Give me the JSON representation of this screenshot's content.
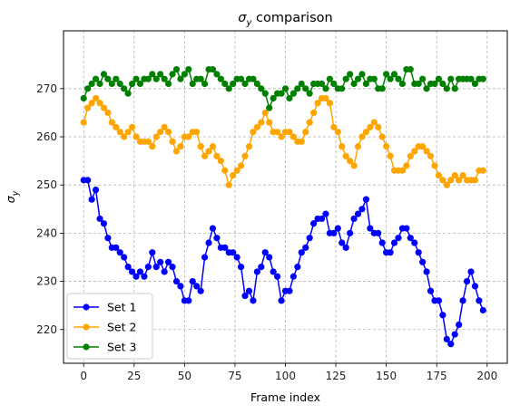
{
  "chart_data": {
    "type": "line",
    "title": "σ_y comparison",
    "title_main": "σ",
    "title_sub": "y",
    "title_rest": " comparison",
    "xlabel": "Frame index",
    "ylabel": "σ_y",
    "ylabel_main": "σ",
    "ylabel_sub": "y",
    "xlim": [
      -10,
      210
    ],
    "ylim": [
      213,
      282
    ],
    "xticks": [
      0,
      25,
      50,
      75,
      100,
      125,
      150,
      175,
      200
    ],
    "yticks": [
      220,
      230,
      240,
      250,
      260,
      270
    ],
    "grid": true,
    "legend_position": "lower-left",
    "series": [
      {
        "name": "Set 1",
        "color": "#0000ff",
        "x": [
          0,
          2,
          4,
          6,
          8,
          10,
          12,
          14,
          16,
          18,
          20,
          22,
          24,
          26,
          28,
          30,
          32,
          34,
          36,
          38,
          40,
          42,
          44,
          46,
          48,
          50,
          52,
          54,
          56,
          58,
          60,
          62,
          64,
          66,
          68,
          70,
          72,
          74,
          76,
          78,
          80,
          82,
          84,
          86,
          88,
          90,
          92,
          94,
          96,
          98,
          100,
          102,
          104,
          106,
          108,
          110,
          112,
          114,
          116,
          118,
          120,
          122,
          124,
          126,
          128,
          130,
          132,
          134,
          136,
          138,
          140,
          142,
          144,
          146,
          148,
          150,
          152,
          154,
          156,
          158,
          160,
          162,
          164,
          166,
          168,
          170,
          172,
          174,
          176,
          178,
          180,
          182,
          184,
          186,
          188,
          190,
          192,
          194,
          196,
          198
        ],
        "y": [
          251,
          251,
          247,
          249,
          243,
          242,
          239,
          237,
          237,
          236,
          235,
          233,
          232,
          231,
          232,
          231,
          233,
          236,
          233,
          234,
          232,
          234,
          233,
          230,
          229,
          226,
          226,
          230,
          229,
          228,
          235,
          238,
          241,
          239,
          237,
          237,
          236,
          236,
          235,
          233,
          227,
          228,
          226,
          232,
          233,
          236,
          235,
          232,
          231,
          226,
          228,
          228,
          231,
          233,
          236,
          237,
          239,
          242,
          243,
          243,
          244,
          240,
          240,
          241,
          238,
          237,
          240,
          243,
          244,
          245,
          247,
          241,
          240,
          240,
          238,
          236,
          236,
          238,
          239,
          241,
          241,
          239,
          238,
          236,
          234,
          232,
          228,
          226,
          226,
          223,
          218,
          217,
          219,
          221,
          226,
          230,
          232,
          229,
          226,
          224
        ]
      },
      {
        "name": "Set 2",
        "color": "#ffa500",
        "x": [
          0,
          2,
          4,
          6,
          8,
          10,
          12,
          14,
          16,
          18,
          20,
          22,
          24,
          26,
          28,
          30,
          32,
          34,
          36,
          38,
          40,
          42,
          44,
          46,
          48,
          50,
          52,
          54,
          56,
          58,
          60,
          62,
          64,
          66,
          68,
          70,
          72,
          74,
          76,
          78,
          80,
          82,
          84,
          86,
          88,
          90,
          92,
          94,
          96,
          98,
          100,
          102,
          104,
          106,
          108,
          110,
          112,
          114,
          116,
          118,
          120,
          122,
          124,
          126,
          128,
          130,
          132,
          134,
          136,
          138,
          140,
          142,
          144,
          146,
          148,
          150,
          152,
          154,
          156,
          158,
          160,
          162,
          164,
          166,
          168,
          170,
          172,
          174,
          176,
          178,
          180,
          182,
          184,
          186,
          188,
          190,
          192,
          194,
          196,
          198
        ],
        "y": [
          263,
          266,
          267,
          268,
          267,
          266,
          265,
          263,
          262,
          261,
          260,
          261,
          262,
          260,
          259,
          259,
          259,
          258,
          260,
          261,
          262,
          261,
          259,
          257,
          258,
          260,
          260,
          261,
          261,
          258,
          256,
          257,
          258,
          256,
          255,
          253,
          250,
          252,
          253,
          254,
          256,
          258,
          261,
          262,
          263,
          265,
          263,
          261,
          261,
          260,
          261,
          261,
          260,
          259,
          259,
          261,
          263,
          265,
          267,
          268,
          268,
          267,
          262,
          261,
          258,
          256,
          255,
          254,
          258,
          260,
          261,
          262,
          263,
          262,
          260,
          258,
          256,
          253,
          253,
          253,
          254,
          256,
          257,
          258,
          258,
          257,
          256,
          254,
          252,
          251,
          250,
          251,
          252,
          251,
          252,
          251,
          251,
          251,
          253,
          253
        ]
      },
      {
        "name": "Set 3",
        "color": "#008000",
        "x": [
          0,
          2,
          4,
          6,
          8,
          10,
          12,
          14,
          16,
          18,
          20,
          22,
          24,
          26,
          28,
          30,
          32,
          34,
          36,
          38,
          40,
          42,
          44,
          46,
          48,
          50,
          52,
          54,
          56,
          58,
          60,
          62,
          64,
          66,
          68,
          70,
          72,
          74,
          76,
          78,
          80,
          82,
          84,
          86,
          88,
          90,
          92,
          94,
          96,
          98,
          100,
          102,
          104,
          106,
          108,
          110,
          112,
          114,
          116,
          118,
          120,
          122,
          124,
          126,
          128,
          130,
          132,
          134,
          136,
          138,
          140,
          142,
          144,
          146,
          148,
          150,
          152,
          154,
          156,
          158,
          160,
          162,
          164,
          166,
          168,
          170,
          172,
          174,
          176,
          178,
          180,
          182,
          184,
          186,
          188,
          190,
          192,
          194,
          196,
          198
        ],
        "y": [
          268,
          270,
          271,
          272,
          271,
          273,
          272,
          271,
          272,
          271,
          270,
          269,
          271,
          272,
          271,
          272,
          272,
          273,
          272,
          273,
          272,
          271,
          273,
          274,
          272,
          273,
          274,
          271,
          272,
          272,
          271,
          274,
          274,
          273,
          272,
          271,
          270,
          271,
          272,
          272,
          271,
          272,
          272,
          271,
          270,
          269,
          266,
          268,
          269,
          269,
          270,
          268,
          269,
          270,
          271,
          270,
          269,
          271,
          271,
          271,
          270,
          272,
          271,
          270,
          270,
          272,
          273,
          271,
          272,
          273,
          271,
          272,
          272,
          270,
          270,
          273,
          272,
          273,
          272,
          271,
          274,
          274,
          271,
          271,
          272,
          270,
          271,
          271,
          272,
          271,
          270,
          272,
          270,
          272,
          272,
          272,
          272,
          271,
          272,
          272
        ]
      }
    ]
  }
}
